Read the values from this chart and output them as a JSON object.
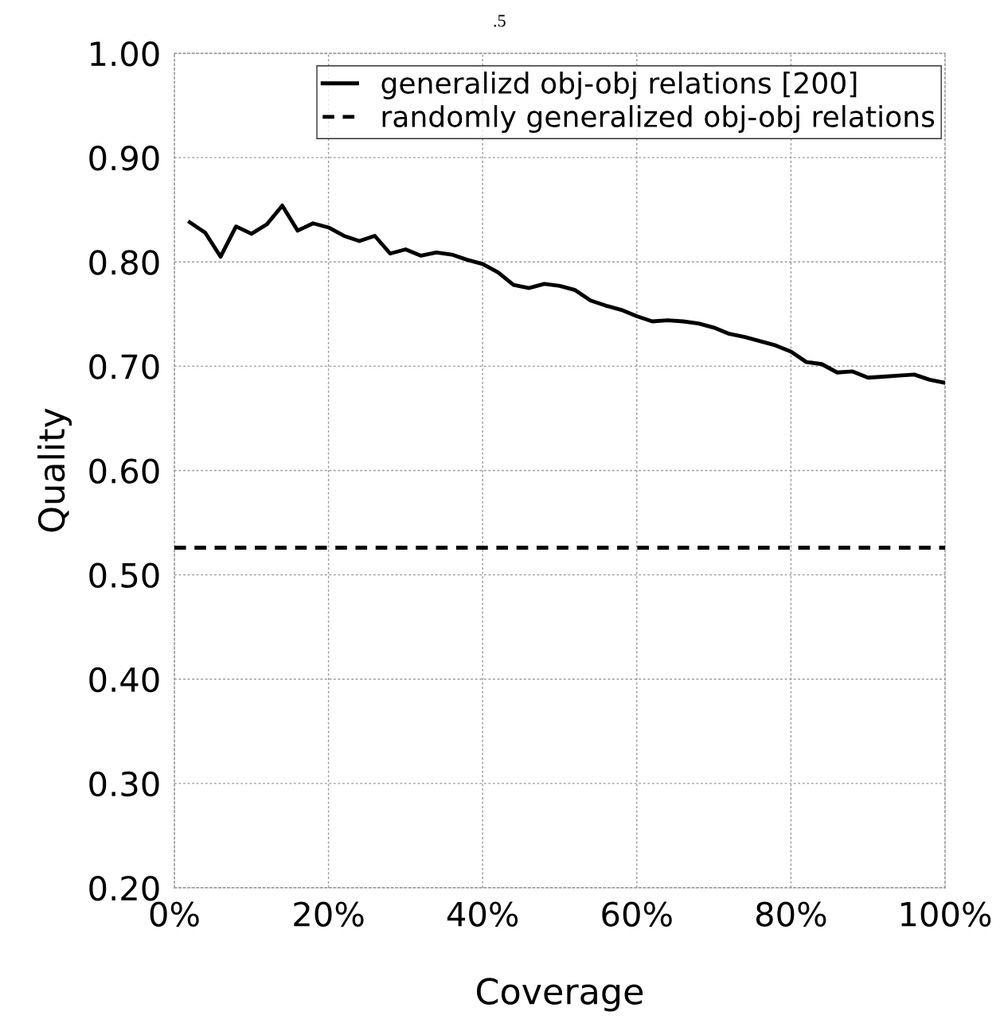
{
  "chart_data": {
    "type": "line",
    "title": ".5",
    "xlabel": "Coverage",
    "ylabel": "Quality",
    "xlim": [
      0,
      100
    ],
    "ylim": [
      0.2,
      1.0
    ],
    "xticks": [
      {
        "value": 0,
        "label": "0%"
      },
      {
        "value": 20,
        "label": "20%"
      },
      {
        "value": 40,
        "label": "40%"
      },
      {
        "value": 60,
        "label": "60%"
      },
      {
        "value": 80,
        "label": "80%"
      },
      {
        "value": 100,
        "label": "100%"
      }
    ],
    "yticks": [
      {
        "value": 0.2,
        "label": "0.20"
      },
      {
        "value": 0.3,
        "label": "0.30"
      },
      {
        "value": 0.4,
        "label": "0.40"
      },
      {
        "value": 0.5,
        "label": "0.50"
      },
      {
        "value": 0.6,
        "label": "0.60"
      },
      {
        "value": 0.7,
        "label": "0.70"
      },
      {
        "value": 0.8,
        "label": "0.80"
      },
      {
        "value": 0.9,
        "label": "0.90"
      },
      {
        "value": 1.0,
        "label": "1.00"
      }
    ],
    "grid": true,
    "legend": "top right",
    "series": [
      {
        "name": "generalizd obj-obj relations [200]",
        "color": "#000000",
        "line_style": "solid",
        "x": [
          2,
          4,
          6,
          8,
          10,
          12,
          14,
          16,
          18,
          20,
          22,
          24,
          26,
          28,
          30,
          32,
          34,
          36,
          38,
          40,
          42,
          44,
          46,
          48,
          50,
          52,
          54,
          56,
          58,
          60,
          62,
          64,
          66,
          68,
          70,
          72,
          74,
          76,
          78,
          80,
          82,
          84,
          86,
          88,
          90,
          92,
          94,
          96,
          98,
          100
        ],
        "values": [
          0.838,
          0.828,
          0.805,
          0.834,
          0.827,
          0.836,
          0.854,
          0.83,
          0.837,
          0.833,
          0.825,
          0.82,
          0.825,
          0.808,
          0.812,
          0.806,
          0.809,
          0.807,
          0.802,
          0.798,
          0.79,
          0.778,
          0.775,
          0.779,
          0.777,
          0.773,
          0.763,
          0.758,
          0.754,
          0.748,
          0.743,
          0.744,
          0.743,
          0.741,
          0.737,
          0.731,
          0.728,
          0.724,
          0.72,
          0.714,
          0.704,
          0.702,
          0.694,
          0.695,
          0.689,
          0.69,
          0.691,
          0.692,
          0.687,
          0.684
        ]
      },
      {
        "name": "randomly generalized obj-obj relations",
        "color": "#000000",
        "line_style": "dashed",
        "x": [
          0,
          100
        ],
        "values": [
          0.526,
          0.526
        ]
      }
    ]
  }
}
